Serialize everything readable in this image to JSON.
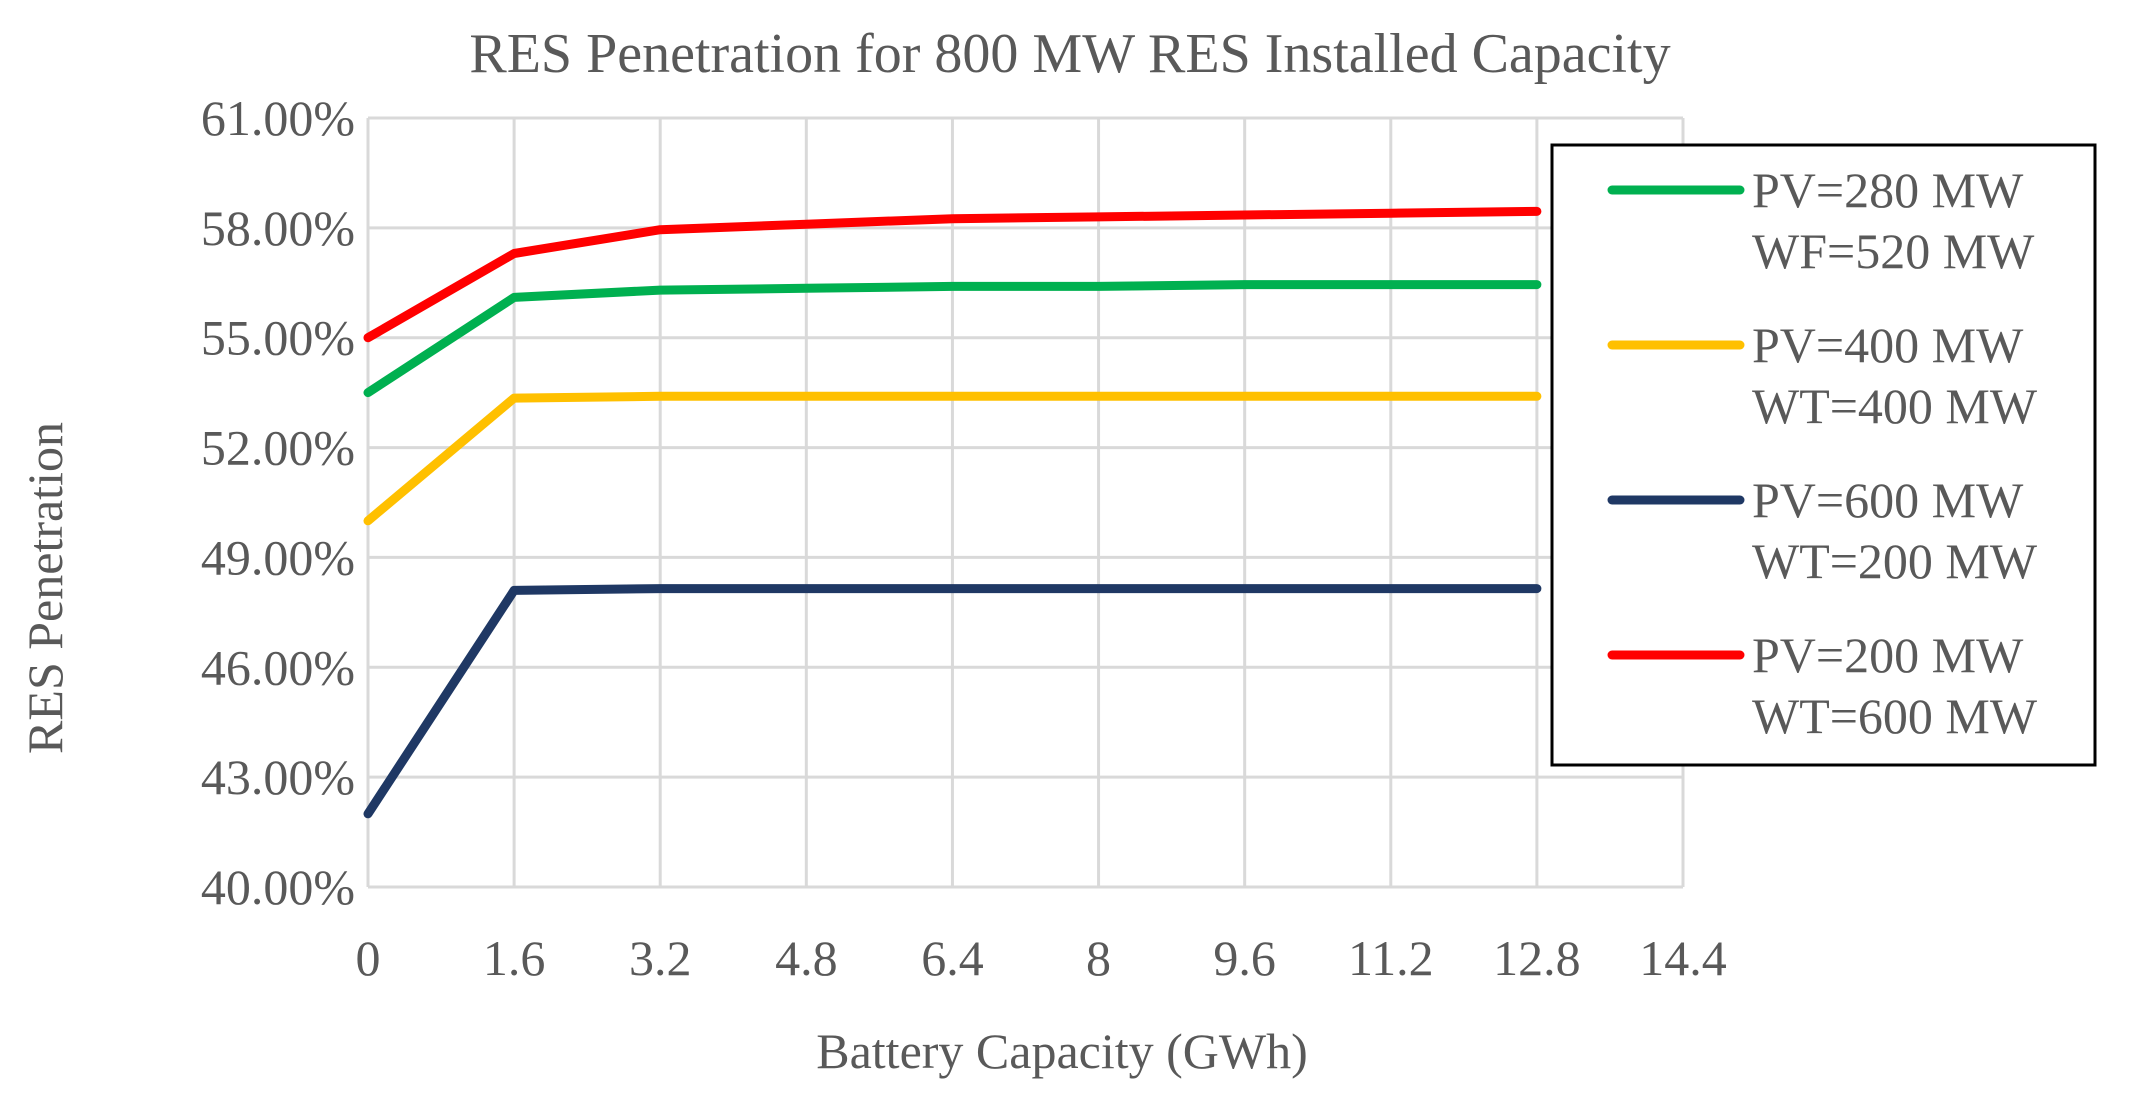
{
  "chart_data": {
    "type": "line",
    "title": "RES Penetration for 800 MW RES Installed Capacity",
    "xlabel": "Battery Capacity (GWh)",
    "ylabel": "RES Penetration",
    "xlim": [
      0,
      14.4
    ],
    "ylim": [
      40.0,
      61.0
    ],
    "x_ticks": [
      "0",
      "1.6",
      "3.2",
      "4.8",
      "6.4",
      "8",
      "9.6",
      "11.2",
      "12.8",
      "14.4"
    ],
    "x_tick_values": [
      0,
      1.6,
      3.2,
      4.8,
      6.4,
      8,
      9.6,
      11.2,
      12.8,
      14.4
    ],
    "y_ticks": [
      "40.00%",
      "43.00%",
      "46.00%",
      "49.00%",
      "52.00%",
      "55.00%",
      "58.00%",
      "61.00%"
    ],
    "y_tick_values": [
      40,
      43,
      46,
      49,
      52,
      55,
      58,
      61
    ],
    "grid": true,
    "legend_position": "right",
    "x": [
      0,
      1.6,
      3.2,
      4.8,
      6.4,
      8,
      9.6,
      11.2,
      12.8
    ],
    "series": [
      {
        "name": "PV=280 MW WF=520 MW",
        "legend_lines": [
          "PV=280 MW",
          "WF=520 MW"
        ],
        "color": "#00b050",
        "values": [
          53.5,
          56.1,
          56.3,
          56.35,
          56.4,
          56.4,
          56.45,
          56.45,
          56.45
        ]
      },
      {
        "name": "PV=400 MW WT=400 MW",
        "legend_lines": [
          "PV=400 MW",
          "WT=400 MW"
        ],
        "color": "#ffc000",
        "values": [
          50.0,
          53.35,
          53.4,
          53.4,
          53.4,
          53.4,
          53.4,
          53.4,
          53.4
        ]
      },
      {
        "name": "PV=600 MW WT=200 MW",
        "legend_lines": [
          "PV=600 MW",
          "WT=200 MW"
        ],
        "color": "#1f3864",
        "values": [
          42.0,
          48.1,
          48.15,
          48.15,
          48.15,
          48.15,
          48.15,
          48.15,
          48.15
        ]
      },
      {
        "name": "PV=200 MW WT=600 MW",
        "legend_lines": [
          "PV=200 MW",
          "WT=600 MW"
        ],
        "color": "#ff0000",
        "values": [
          55.0,
          57.3,
          57.95,
          58.1,
          58.25,
          58.3,
          58.35,
          58.4,
          58.45
        ]
      }
    ]
  }
}
